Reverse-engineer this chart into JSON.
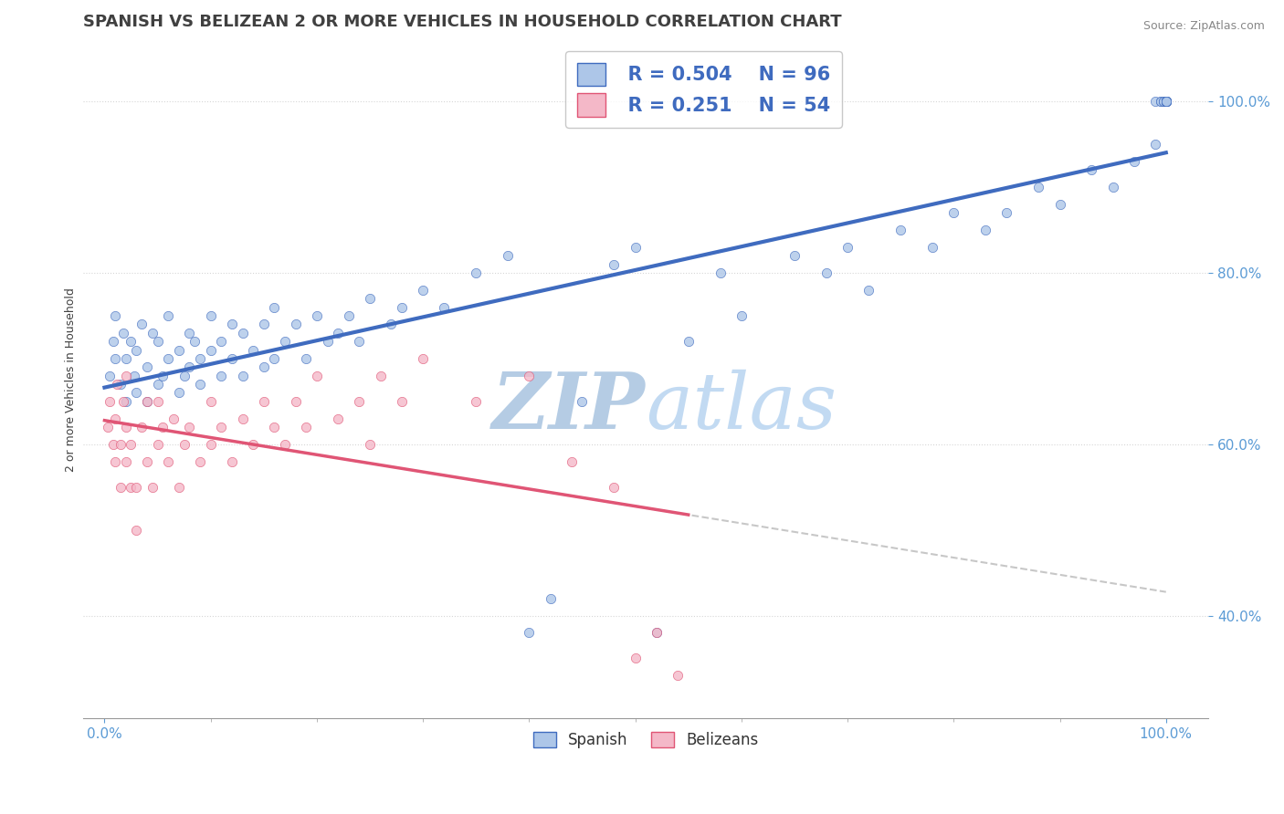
{
  "title": "SPANISH VS BELIZEAN 2 OR MORE VEHICLES IN HOUSEHOLD CORRELATION CHART",
  "source": "Source: ZipAtlas.com",
  "ylabel": "2 or more Vehicles in Household",
  "legend_r_spanish": "R = 0.504",
  "legend_n_spanish": "N = 96",
  "legend_r_belizean": "R = 0.251",
  "legend_n_belizean": "N = 54",
  "spanish_color": "#adc6e8",
  "belizean_color": "#f4b8c8",
  "regression_spanish_color": "#3f6bbf",
  "regression_belizean_color": "#e05575",
  "watermark_color": "#c5d8ee",
  "background_color": "#ffffff",
  "tick_color": "#5b9bd5",
  "grid_color": "#cccccc",
  "title_color": "#404040",
  "ylabel_color": "#404040",
  "source_color": "#888888",
  "title_fontsize": 13,
  "axis_label_fontsize": 9,
  "tick_fontsize": 11,
  "legend_fontsize": 15,
  "watermark_fontsize": 52,
  "scatter_size": 55,
  "scatter_edge_width": 0.5,
  "regression_lw_spanish": 3.0,
  "regression_lw_belizean": 2.5,
  "xlim": [
    -0.02,
    1.04
  ],
  "ylim": [
    0.28,
    1.07
  ],
  "x_ticks": [
    0.0,
    1.0
  ],
  "y_ticks": [
    0.4,
    0.6,
    0.8,
    1.0
  ],
  "spanish_x": [
    0.005,
    0.008,
    0.01,
    0.01,
    0.015,
    0.018,
    0.02,
    0.02,
    0.025,
    0.028,
    0.03,
    0.03,
    0.035,
    0.04,
    0.04,
    0.045,
    0.05,
    0.05,
    0.055,
    0.06,
    0.06,
    0.07,
    0.07,
    0.075,
    0.08,
    0.08,
    0.085,
    0.09,
    0.09,
    0.1,
    0.1,
    0.11,
    0.11,
    0.12,
    0.12,
    0.13,
    0.13,
    0.14,
    0.15,
    0.15,
    0.16,
    0.16,
    0.17,
    0.18,
    0.19,
    0.2,
    0.21,
    0.22,
    0.23,
    0.24,
    0.25,
    0.27,
    0.28,
    0.3,
    0.32,
    0.35,
    0.38,
    0.4,
    0.42,
    0.45,
    0.48,
    0.5,
    0.52,
    0.55,
    0.58,
    0.6,
    0.65,
    0.68,
    0.7,
    0.72,
    0.75,
    0.78,
    0.8,
    0.83,
    0.85,
    0.88,
    0.9,
    0.93,
    0.95,
    0.97,
    0.99,
    0.99,
    0.995,
    0.995,
    0.998,
    0.998,
    1.0,
    1.0,
    1.0,
    1.0,
    1.0,
    1.0,
    1.0,
    1.0,
    1.0,
    1.0
  ],
  "spanish_y": [
    0.68,
    0.72,
    0.7,
    0.75,
    0.67,
    0.73,
    0.65,
    0.7,
    0.72,
    0.68,
    0.66,
    0.71,
    0.74,
    0.65,
    0.69,
    0.73,
    0.67,
    0.72,
    0.68,
    0.7,
    0.75,
    0.66,
    0.71,
    0.68,
    0.73,
    0.69,
    0.72,
    0.67,
    0.7,
    0.71,
    0.75,
    0.68,
    0.72,
    0.7,
    0.74,
    0.68,
    0.73,
    0.71,
    0.69,
    0.74,
    0.7,
    0.76,
    0.72,
    0.74,
    0.7,
    0.75,
    0.72,
    0.73,
    0.75,
    0.72,
    0.77,
    0.74,
    0.76,
    0.78,
    0.76,
    0.8,
    0.82,
    0.38,
    0.42,
    0.65,
    0.81,
    0.83,
    0.38,
    0.72,
    0.8,
    0.75,
    0.82,
    0.8,
    0.83,
    0.78,
    0.85,
    0.83,
    0.87,
    0.85,
    0.87,
    0.9,
    0.88,
    0.92,
    0.9,
    0.93,
    0.95,
    1.0,
    1.0,
    1.0,
    1.0,
    1.0,
    1.0,
    1.0,
    1.0,
    1.0,
    1.0,
    1.0,
    1.0,
    1.0,
    1.0,
    1.0
  ],
  "belizean_x": [
    0.003,
    0.005,
    0.008,
    0.01,
    0.01,
    0.012,
    0.015,
    0.015,
    0.018,
    0.02,
    0.02,
    0.02,
    0.025,
    0.025,
    0.03,
    0.03,
    0.035,
    0.04,
    0.04,
    0.045,
    0.05,
    0.05,
    0.055,
    0.06,
    0.065,
    0.07,
    0.075,
    0.08,
    0.09,
    0.1,
    0.1,
    0.11,
    0.12,
    0.13,
    0.14,
    0.15,
    0.16,
    0.17,
    0.18,
    0.19,
    0.2,
    0.22,
    0.24,
    0.25,
    0.26,
    0.28,
    0.3,
    0.35,
    0.4,
    0.44,
    0.48,
    0.5,
    0.52,
    0.54
  ],
  "belizean_y": [
    0.62,
    0.65,
    0.6,
    0.58,
    0.63,
    0.67,
    0.55,
    0.6,
    0.65,
    0.58,
    0.62,
    0.68,
    0.55,
    0.6,
    0.5,
    0.55,
    0.62,
    0.58,
    0.65,
    0.55,
    0.6,
    0.65,
    0.62,
    0.58,
    0.63,
    0.55,
    0.6,
    0.62,
    0.58,
    0.6,
    0.65,
    0.62,
    0.58,
    0.63,
    0.6,
    0.65,
    0.62,
    0.6,
    0.65,
    0.62,
    0.68,
    0.63,
    0.65,
    0.6,
    0.68,
    0.65,
    0.7,
    0.65,
    0.68,
    0.58,
    0.55,
    0.35,
    0.38,
    0.33
  ]
}
